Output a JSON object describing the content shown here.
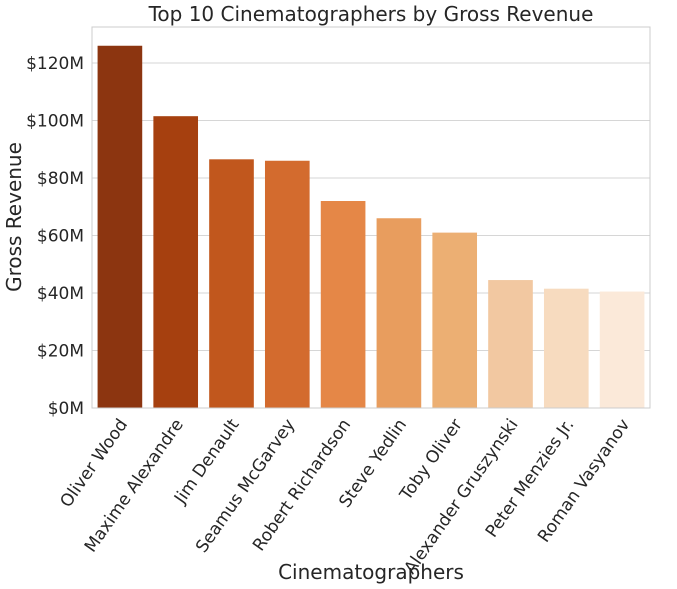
{
  "chart_data": {
    "type": "bar",
    "title": "Top 10 Cinematographers by Gross Revenue",
    "xlabel": "Cinematographers",
    "ylabel": "Gross Revenue",
    "categories": [
      "Oliver Wood",
      "Maxime Alexandre",
      "Jim Denault",
      "Seamus McGarvey",
      "Robert Richardson",
      "Steve Yedlin",
      "Toby Oliver",
      "Alexander Gruszynski",
      "Peter Menzies Jr.",
      "Roman Vasyanov"
    ],
    "values": [
      126,
      101.5,
      86.5,
      86,
      72,
      66,
      61,
      44.5,
      41.5,
      40.5
    ],
    "value_unit": "millions of US dollars",
    "ylim": [
      0,
      121
    ],
    "yticks": [
      0,
      20,
      40,
      60,
      80,
      100,
      120
    ],
    "ytick_labels": [
      "$0M",
      "$20M",
      "$40M",
      "$60M",
      "$80M",
      "$100M",
      "$120M"
    ],
    "colors": [
      "#8c3510",
      "#a6400f",
      "#c1571d",
      "#d36b2e",
      "#e58747",
      "#e89d5e",
      "#ecaf73",
      "#f2c8a1",
      "#f7dbbf",
      "#fbe9d9"
    ],
    "grid": true,
    "legend": "none"
  }
}
